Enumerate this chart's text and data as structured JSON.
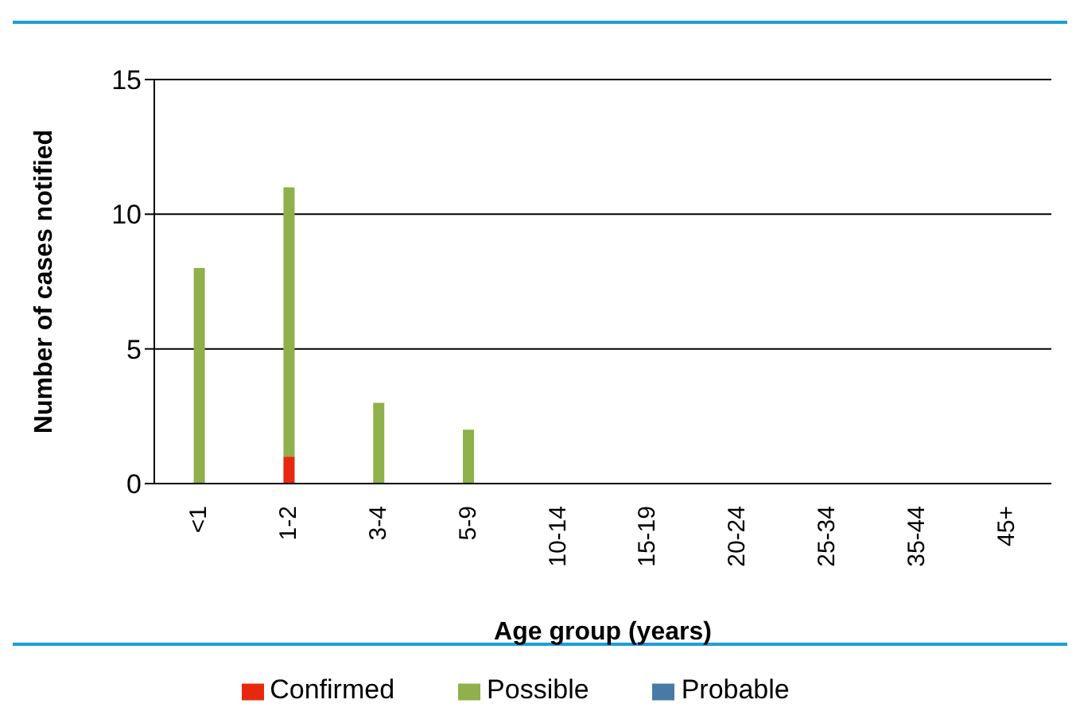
{
  "chart_data": {
    "type": "bar",
    "xlabel": "Age group (years)",
    "ylabel": "Number of cases notified",
    "categories": [
      "<1",
      "1-2",
      "3-4",
      "5-9",
      "10-14",
      "15-19",
      "20-24",
      "25-34",
      "35-44",
      "45+"
    ],
    "stacked": true,
    "series": [
      {
        "name": "Confirmed",
        "color": "#e8280e",
        "values": [
          0,
          1,
          0,
          0,
          0,
          0,
          0,
          0,
          0,
          0
        ]
      },
      {
        "name": "Probable",
        "color": "#4a79a8",
        "values": [
          0,
          0,
          0,
          0,
          0,
          0,
          0,
          0,
          0,
          0
        ]
      },
      {
        "name": "Possible",
        "color": "#8fb04a",
        "values": [
          8,
          10,
          3,
          2,
          0,
          0,
          0,
          0,
          0,
          0
        ]
      }
    ],
    "ylim": [
      0,
      15
    ],
    "yticks": [
      0,
      5,
      10,
      15
    ],
    "grid": "y",
    "legend": "bottom"
  }
}
